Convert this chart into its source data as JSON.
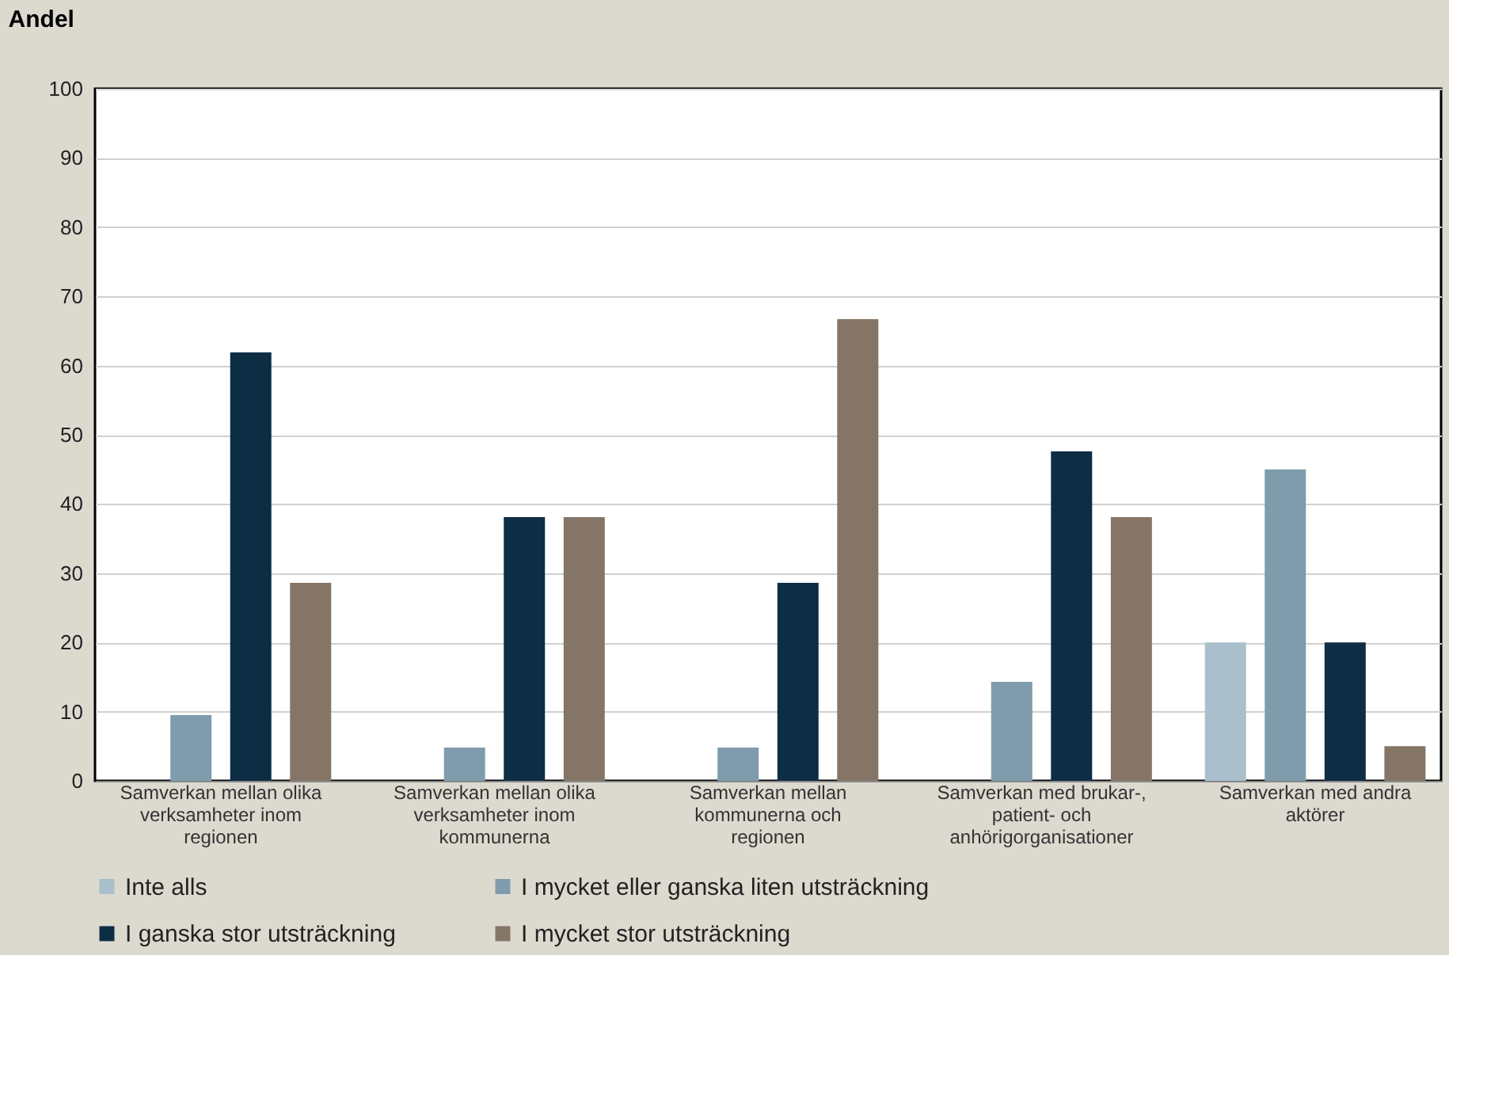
{
  "chart_data": {
    "type": "bar",
    "title": "Andel",
    "categories": [
      "Samverkan mellan olika verksamheter inom regionen",
      "Samverkan mellan olika verksamheter inom kommunerna",
      "Samverkan mellan kommunerna och regionen",
      "Samverkan med brukar-, patient- och anhörigorganisationer",
      "Samverkan med andra aktörer"
    ],
    "series": [
      {
        "name": "Inte alls",
        "color": "#a9bfcc",
        "values": [
          0,
          0,
          0,
          0,
          20
        ]
      },
      {
        "name": "I mycket eller ganska liten utsträckning",
        "color": "#7f9cad",
        "values": [
          9.5,
          4.8,
          4.8,
          14.3,
          45
        ]
      },
      {
        "name": "I ganska stor utsträckning",
        "color": "#0d2d45",
        "values": [
          61.9,
          38.1,
          28.6,
          47.6,
          20
        ]
      },
      {
        "name": "I mycket stor utsträckning",
        "color": "#857566",
        "values": [
          28.6,
          38.1,
          66.7,
          38.1,
          5
        ]
      }
    ],
    "ylim": [
      0,
      100
    ],
    "yticks": [
      0,
      10,
      20,
      30,
      40,
      50,
      60,
      70,
      80,
      90,
      100
    ],
    "grid": "y",
    "legend": "bottom"
  }
}
